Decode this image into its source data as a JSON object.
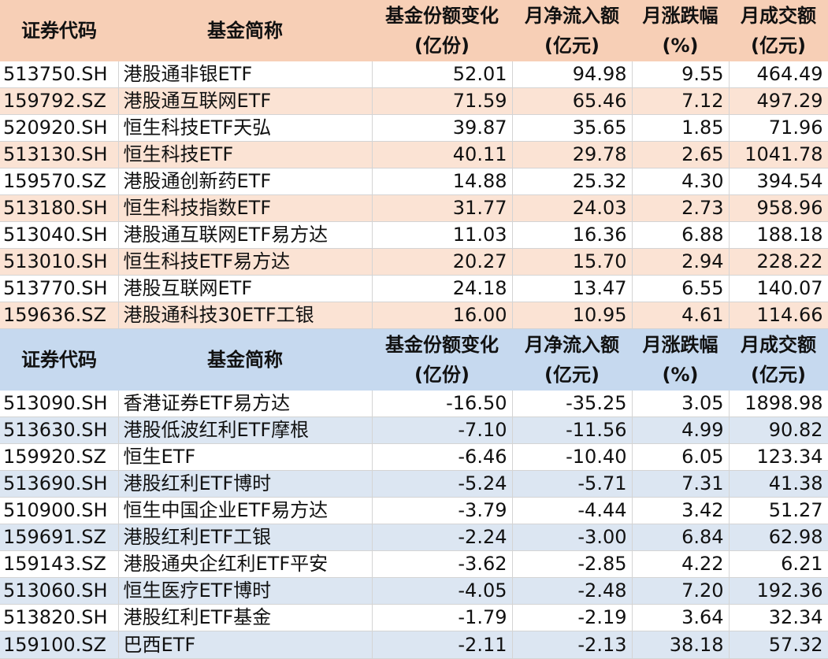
{
  "headers": {
    "code": "证券代码",
    "name": "基金简称",
    "share_change": [
      "基金份额变化",
      "(亿份)"
    ],
    "net_inflow": [
      "月净流入额",
      "(亿元)"
    ],
    "change_pct": [
      "月涨跌幅",
      "(%)"
    ],
    "turnover": [
      "月成交额",
      "(亿元)"
    ]
  },
  "inflow_rows": [
    {
      "code": "513750.SH",
      "name": "港股通非银ETF",
      "share_change": "52.01",
      "net_inflow": "94.98",
      "change_pct": "9.55",
      "turnover": "464.49"
    },
    {
      "code": "159792.SZ",
      "name": "港股通互联网ETF",
      "share_change": "71.59",
      "net_inflow": "65.46",
      "change_pct": "7.12",
      "turnover": "497.29"
    },
    {
      "code": "520920.SH",
      "name": "恒生科技ETF天弘",
      "share_change": "39.87",
      "net_inflow": "35.65",
      "change_pct": "1.85",
      "turnover": "71.96"
    },
    {
      "code": "513130.SH",
      "name": "恒生科技ETF",
      "share_change": "40.11",
      "net_inflow": "29.78",
      "change_pct": "2.65",
      "turnover": "1041.78"
    },
    {
      "code": "159570.SZ",
      "name": "港股通创新药ETF",
      "share_change": "14.88",
      "net_inflow": "25.32",
      "change_pct": "4.30",
      "turnover": "394.54"
    },
    {
      "code": "513180.SH",
      "name": "恒生科技指数ETF",
      "share_change": "31.77",
      "net_inflow": "24.03",
      "change_pct": "2.73",
      "turnover": "958.96"
    },
    {
      "code": "513040.SH",
      "name": "港股通互联网ETF易方达",
      "share_change": "11.03",
      "net_inflow": "16.36",
      "change_pct": "6.88",
      "turnover": "188.18"
    },
    {
      "code": "513010.SH",
      "name": "恒生科技ETF易方达",
      "share_change": "20.27",
      "net_inflow": "15.70",
      "change_pct": "2.94",
      "turnover": "228.22"
    },
    {
      "code": "513770.SH",
      "name": "港股互联网ETF",
      "share_change": "24.18",
      "net_inflow": "13.47",
      "change_pct": "6.55",
      "turnover": "140.07"
    },
    {
      "code": "159636.SZ",
      "name": "港股通科技30ETF工银",
      "share_change": "16.00",
      "net_inflow": "10.95",
      "change_pct": "4.61",
      "turnover": "114.66"
    }
  ],
  "outflow_rows": [
    {
      "code": "513090.SH",
      "name": "香港证券ETF易方达",
      "share_change": "-16.50",
      "net_inflow": "-35.25",
      "change_pct": "3.05",
      "turnover": "1898.98"
    },
    {
      "code": "513630.SH",
      "name": "港股低波红利ETF摩根",
      "share_change": "-7.10",
      "net_inflow": "-11.56",
      "change_pct": "4.99",
      "turnover": "90.82"
    },
    {
      "code": "159920.SZ",
      "name": "恒生ETF",
      "share_change": "-6.46",
      "net_inflow": "-10.40",
      "change_pct": "6.05",
      "turnover": "123.34"
    },
    {
      "code": "513690.SH",
      "name": "港股红利ETF博时",
      "share_change": "-5.24",
      "net_inflow": "-5.71",
      "change_pct": "7.31",
      "turnover": "41.38"
    },
    {
      "code": "510900.SH",
      "name": "恒生中国企业ETF易方达",
      "share_change": "-3.79",
      "net_inflow": "-4.44",
      "change_pct": "3.42",
      "turnover": "51.27"
    },
    {
      "code": "159691.SZ",
      "name": "港股红利ETF工银",
      "share_change": "-2.24",
      "net_inflow": "-3.00",
      "change_pct": "6.84",
      "turnover": "62.98"
    },
    {
      "code": "159143.SZ",
      "name": "港股通央企红利ETF平安",
      "share_change": "-3.62",
      "net_inflow": "-2.85",
      "change_pct": "4.22",
      "turnover": "6.21"
    },
    {
      "code": "513060.SH",
      "name": "恒生医疗ETF博时",
      "share_change": "-4.05",
      "net_inflow": "-2.48",
      "change_pct": "7.20",
      "turnover": "192.36"
    },
    {
      "code": "513820.SH",
      "name": "港股红利ETF基金",
      "share_change": "-1.79",
      "net_inflow": "-2.19",
      "change_pct": "3.64",
      "turnover": "32.34"
    },
    {
      "code": "159100.SZ",
      "name": "巴西ETF",
      "share_change": "-2.11",
      "net_inflow": "-2.13",
      "change_pct": "38.18",
      "turnover": "57.32"
    }
  ]
}
